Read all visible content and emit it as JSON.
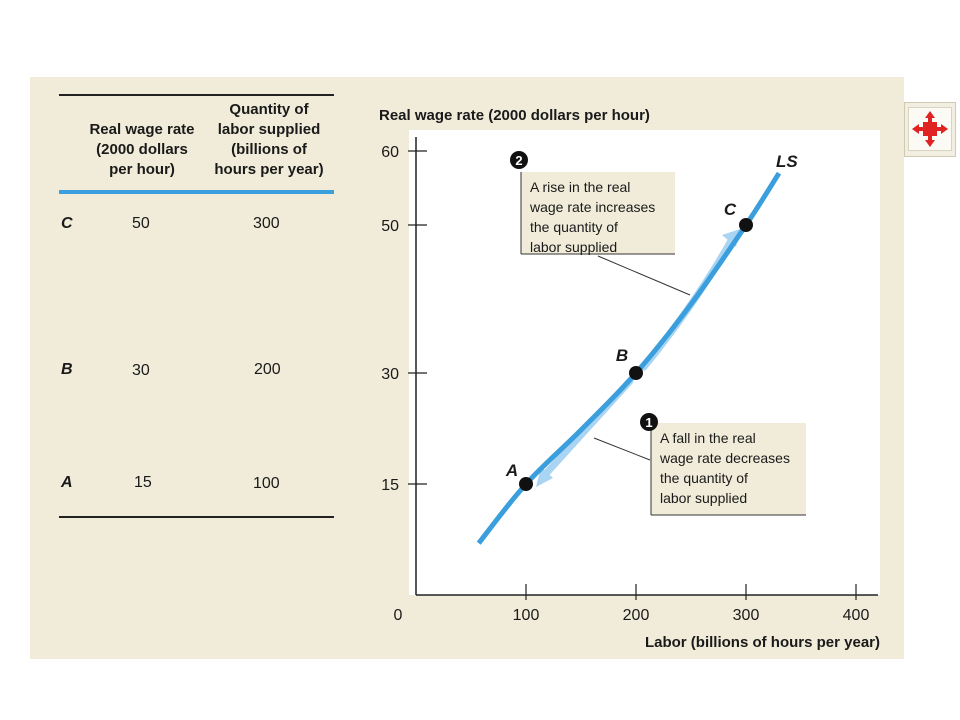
{
  "table": {
    "headers": [
      "Real wage rate (2000 dollars per hour)",
      "Quantity of labor supplied (billions of hours per year)"
    ],
    "header_lines": {
      "wage": [
        "Real wage rate",
        "(2000 dollars",
        "per hour)"
      ],
      "quantity": [
        "Quantity of",
        "labor supplied",
        "(billions of",
        "hours per year)"
      ]
    },
    "rows": [
      {
        "label": "C",
        "wage": "50",
        "quantity": "300"
      },
      {
        "label": "B",
        "wage": "30",
        "quantity": "200"
      },
      {
        "label": "A",
        "wage": "15",
        "quantity": "100"
      }
    ]
  },
  "chart_data": {
    "type": "line",
    "ylabel": "Real wage rate (2000 dollars per hour)",
    "xlabel": "Labor (billions of hours per year)",
    "xlim": [
      0,
      400
    ],
    "ylim": [
      0,
      60
    ],
    "x_ticks": [
      "0",
      "100",
      "200",
      "300",
      "400"
    ],
    "y_ticks": [
      "15",
      "30",
      "50",
      "60"
    ],
    "y_tick_values": [
      15,
      30,
      50,
      60
    ],
    "grid": false,
    "series": [
      {
        "name": "LS",
        "color": "#3a9fdc",
        "x": [
          57,
          100,
          150,
          200,
          250,
          300,
          330
        ],
        "y": [
          7,
          15,
          22.3,
          30,
          39.3,
          50,
          57
        ]
      }
    ],
    "points": [
      {
        "label": "A",
        "x": 100,
        "y": 15
      },
      {
        "label": "B",
        "x": 200,
        "y": 30
      },
      {
        "label": "C",
        "x": 300,
        "y": 50
      }
    ],
    "annotations": [
      {
        "number": "2",
        "lines": [
          "A rise in the real",
          "wage rate increases",
          "the quantity of",
          "labor supplied"
        ]
      },
      {
        "number": "1",
        "lines": [
          "A fall in the real",
          "wage rate decreases",
          "the quantity of",
          "labor supplied"
        ]
      }
    ],
    "colors": {
      "curve": "#3a9fdc",
      "arrow": "#a9d4f2",
      "callout_bg": "#f0ecd9"
    }
  }
}
